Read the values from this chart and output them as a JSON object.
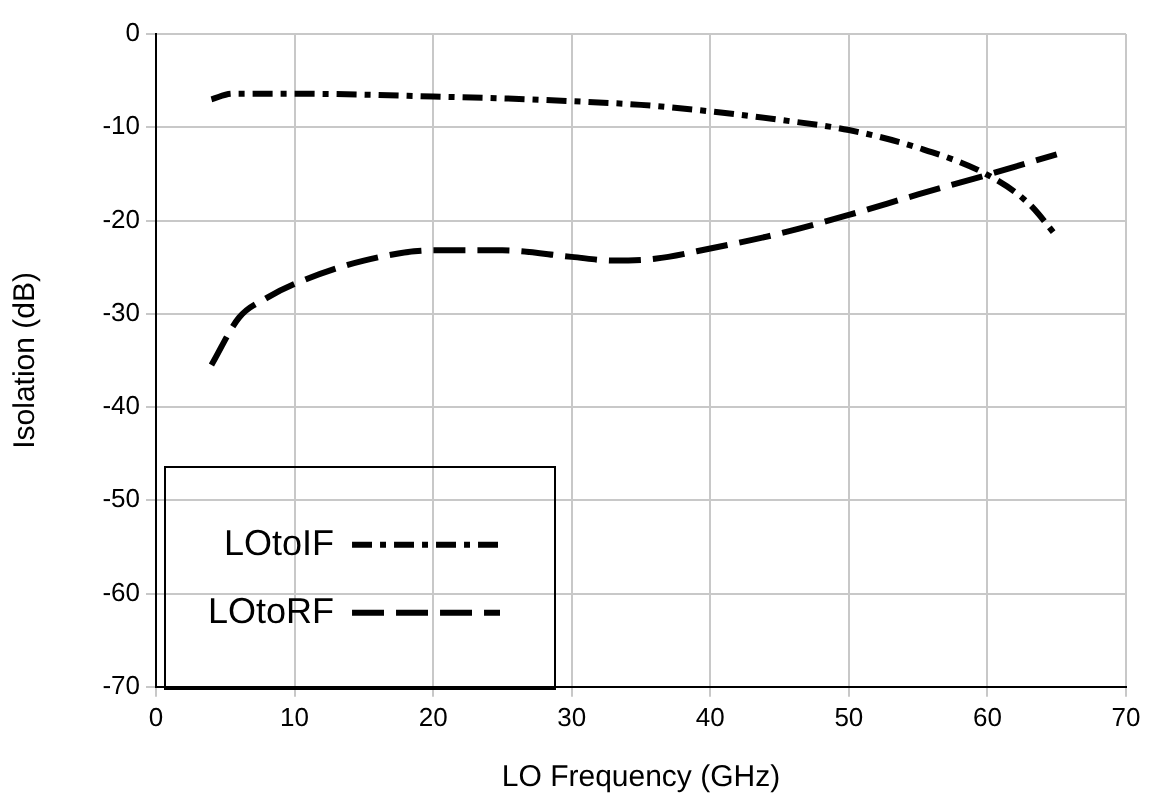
{
  "chart_data": {
    "type": "line",
    "xlabel": "LO Frequency (GHz)",
    "ylabel": "Isolation (dB)",
    "xlim": [
      0,
      70
    ],
    "xticks": [
      0,
      10,
      20,
      30,
      40,
      50,
      60,
      70
    ],
    "ylim": [
      -70,
      0
    ],
    "yticks": [
      -70,
      -60,
      -50,
      -40,
      -30,
      -20,
      -10,
      0
    ],
    "grid": true,
    "legend": "bottom left",
    "marker": "none",
    "series": [
      {
        "name": "LOtoIF",
        "color": "#000000",
        "line_style": "dashdot",
        "x": [
          4,
          5.5,
          10,
          15,
          20,
          25,
          30,
          35,
          40,
          45,
          50,
          55,
          60,
          63,
          65
        ],
        "values": [
          -7.0,
          -6.4,
          -6.4,
          -6.5,
          -6.7,
          -6.9,
          -7.2,
          -7.6,
          -8.3,
          -9.2,
          -10.3,
          -12.2,
          -15.1,
          -18.2,
          -21.7
        ]
      },
      {
        "name": "LOtoRF",
        "color": "#000000",
        "line_style": "dashed",
        "x": [
          4,
          6,
          8,
          10,
          15,
          20,
          25,
          30,
          33,
          36,
          40,
          45,
          50,
          55,
          60,
          65
        ],
        "values": [
          -35.5,
          -30.4,
          -28.3,
          -26.8,
          -24.3,
          -23.2,
          -23.2,
          -23.9,
          -24.3,
          -24.1,
          -23.0,
          -21.4,
          -19.4,
          -17.2,
          -15.1,
          -12.9
        ]
      }
    ]
  }
}
